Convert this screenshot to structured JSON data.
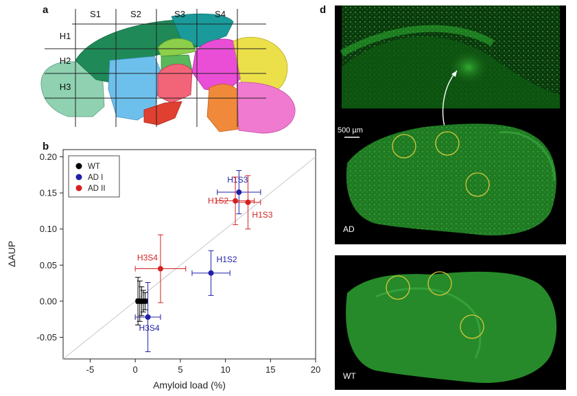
{
  "panels": {
    "a": "a",
    "b": "b",
    "d": "d"
  },
  "atlas": {
    "columns": [
      "S1",
      "S2",
      "S3",
      "S4"
    ],
    "rows": [
      "H1",
      "H2",
      "H3"
    ]
  },
  "micrographs": {
    "scale_bar_label": "500 µm",
    "ad_label": "AD",
    "wt_label": "WT"
  },
  "colors": {
    "wt": "#000000",
    "ad1": "#1f1fa8",
    "ad2": "#d42020",
    "fluorescence": "#2fc22f"
  },
  "chart_data": {
    "type": "scatter",
    "xlabel": "Amyloid load (%)",
    "ylabel": "ΔAUP",
    "xlim": [
      -8,
      20
    ],
    "ylim": [
      -0.08,
      0.21
    ],
    "xticks": [
      -5,
      0,
      5,
      10,
      15,
      20
    ],
    "yticks": [
      -0.05,
      0.0,
      0.05,
      0.1,
      0.15,
      0.2
    ],
    "ytick_labels": [
      "-0.05",
      "0.00",
      "0.05",
      "0.10",
      "0.15",
      "0.20"
    ],
    "diagonal_reference_line": true,
    "legend_position": "top-left",
    "series": [
      {
        "name": "WT",
        "color": "#000000",
        "points": [
          {
            "x": 0.3,
            "y": 0.0,
            "xerr": 0.2,
            "yerr": 0.033,
            "label": ""
          },
          {
            "x": 0.5,
            "y": 0.0,
            "xerr": 0.2,
            "yerr": 0.028,
            "label": ""
          },
          {
            "x": 0.7,
            "y": 0.0,
            "xerr": 0.2,
            "yerr": 0.02,
            "label": ""
          },
          {
            "x": 0.9,
            "y": 0.0,
            "xerr": 0.2,
            "yerr": 0.015,
            "label": ""
          },
          {
            "x": 1.1,
            "y": 0.0,
            "xerr": 0.2,
            "yerr": 0.012,
            "label": ""
          }
        ]
      },
      {
        "name": "AD I",
        "color": "#1f1fa8",
        "points": [
          {
            "x": 11.5,
            "y": 0.151,
            "xerr": 2.4,
            "yerr": 0.03,
            "label": "H1S3"
          },
          {
            "x": 8.4,
            "y": 0.039,
            "xerr": 2.1,
            "yerr": 0.031,
            "label": "H1S2"
          },
          {
            "x": 1.4,
            "y": -0.022,
            "xerr": 1.4,
            "yerr": 0.048,
            "label": "H3S4"
          }
        ]
      },
      {
        "name": "AD II",
        "color": "#d42020",
        "points": [
          {
            "x": 11.1,
            "y": 0.139,
            "xerr": 2.1,
            "yerr": 0.033,
            "label": "H1S2"
          },
          {
            "x": 12.5,
            "y": 0.137,
            "xerr": 1.4,
            "yerr": 0.037,
            "label": "H1S3"
          },
          {
            "x": 2.8,
            "y": 0.045,
            "xerr": 2.8,
            "yerr": 0.047,
            "label": "H3S4"
          }
        ]
      }
    ]
  }
}
